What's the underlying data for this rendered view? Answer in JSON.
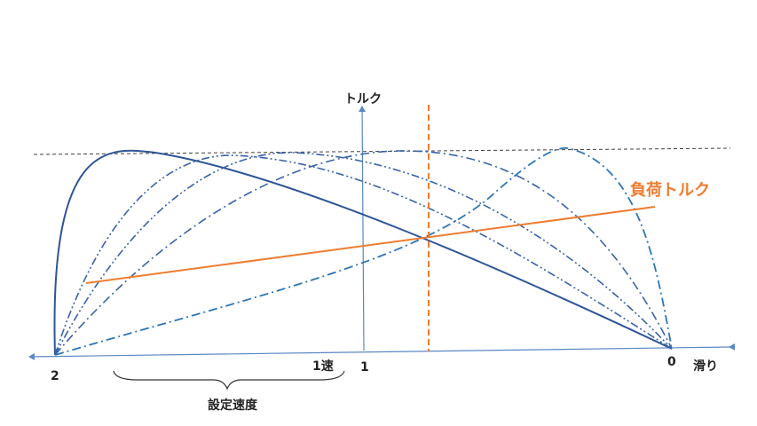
{
  "diagram": {
    "axis_y_label": "トルク",
    "axis_x_label": "滑り",
    "tick_left": "2",
    "tick_center": "1",
    "tick_right": "0",
    "speed1_label": "1速",
    "brace_label": "設定速度",
    "load_torque_label": "負荷トルク"
  },
  "colors": {
    "axis": "#5a87c5",
    "curve_main": "#2f5597",
    "curve_dashdot": "#3a63a8",
    "curve_light": "#2e75b6",
    "load": "#ed7d31",
    "max_torque_line": "#404040",
    "brace": "#333333"
  }
}
